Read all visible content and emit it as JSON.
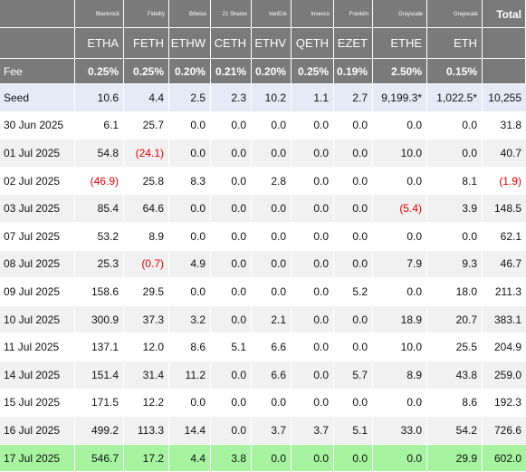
{
  "providers": [
    "",
    "Blackrock",
    "Fidelity",
    "Bitwise",
    "21 Shares",
    "VanEck",
    "Invesco",
    "Franklin",
    "Grayscale",
    "Grayscale",
    "Total"
  ],
  "tickers": [
    "",
    "ETHA",
    "FETH",
    "ETHW",
    "CETH",
    "ETHV",
    "QETH",
    "EZET",
    "ETHE",
    "ETH",
    ""
  ],
  "fees": [
    "Fee",
    "0.25%",
    "0.25%",
    "0.20%",
    "0.21%",
    "0.20%",
    "0.25%",
    "0.19%",
    "2.50%",
    "0.15%",
    ""
  ],
  "rows": [
    [
      "Seed",
      "10.6",
      "4.4",
      "2.5",
      "2.3",
      "10.2",
      "1.1",
      "2.7",
      "9,199.3*",
      "1,022.5*",
      "10,255"
    ],
    [
      "30 Jun 2025",
      "6.1",
      "25.7",
      "0.0",
      "0.0",
      "0.0",
      "0.0",
      "0.0",
      "0.0",
      "0.0",
      "31.8"
    ],
    [
      "01 Jul 2025",
      "54.8",
      "(24.1)",
      "0.0",
      "0.0",
      "0.0",
      "0.0",
      "0.0",
      "10.0",
      "0.0",
      "40.7"
    ],
    [
      "02 Jul 2025",
      "(46.9)",
      "25.8",
      "8.3",
      "0.0",
      "2.8",
      "0.0",
      "0.0",
      "0.0",
      "8.1",
      "(1.9)"
    ],
    [
      "03 Jul 2025",
      "85.4",
      "64.6",
      "0.0",
      "0.0",
      "0.0",
      "0.0",
      "0.0",
      "(5.4)",
      "3.9",
      "148.5"
    ],
    [
      "07 Jul 2025",
      "53.2",
      "8.9",
      "0.0",
      "0.0",
      "0.0",
      "0.0",
      "0.0",
      "0.0",
      "0.0",
      "62.1"
    ],
    [
      "08 Jul 2025",
      "25.3",
      "(0.7)",
      "4.9",
      "0.0",
      "0.0",
      "0.0",
      "0.0",
      "7.9",
      "9.3",
      "46.7"
    ],
    [
      "09 Jul 2025",
      "158.6",
      "29.5",
      "0.0",
      "0.0",
      "0.0",
      "0.0",
      "5.2",
      "0.0",
      "18.0",
      "211.3"
    ],
    [
      "10 Jul 2025",
      "300.9",
      "37.3",
      "3.2",
      "0.0",
      "2.1",
      "0.0",
      "0.0",
      "18.9",
      "20.7",
      "383.1"
    ],
    [
      "11 Jul 2025",
      "137.1",
      "12.0",
      "8.6",
      "5.1",
      "6.6",
      "0.0",
      "0.0",
      "10.0",
      "25.5",
      "204.9"
    ],
    [
      "14 Jul 2025",
      "151.4",
      "31.4",
      "11.2",
      "0.0",
      "6.6",
      "0.0",
      "5.7",
      "8.9",
      "43.8",
      "259.0"
    ],
    [
      "15 Jul 2025",
      "171.5",
      "12.2",
      "0.0",
      "0.0",
      "0.0",
      "0.0",
      "0.0",
      "0.0",
      "8.6",
      "192.3"
    ],
    [
      "16 Jul 2025",
      "499.2",
      "113.3",
      "14.4",
      "0.0",
      "3.7",
      "3.7",
      "5.1",
      "33.0",
      "54.2",
      "726.6"
    ],
    [
      "17 Jul 2025",
      "546.7",
      "17.2",
      "4.4",
      "3.8",
      "0.0",
      "0.0",
      "0.0",
      "0.0",
      "29.9",
      "602.0"
    ]
  ],
  "colors": {
    "header_bg": "#7a7a7a",
    "seed_bg": "#e6eaf6",
    "alt_row_bg": "#f1f1f1",
    "latest_row_bg": "#a7f4a0",
    "negative_text": "#e00000"
  }
}
